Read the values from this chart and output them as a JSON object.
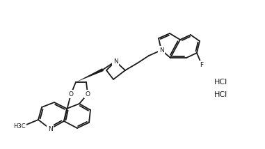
{
  "background_color": "#ffffff",
  "line_color": "#1a1a1a",
  "line_width": 1.3,
  "text_color": "#1a1a1a",
  "HCl_1": "HCl",
  "HCl_2": "HCl",
  "F_label": "F",
  "N_indole": "N",
  "N_azetidine": "N",
  "N_quinoline": "N",
  "H3C_label": "H3C",
  "O1_label": "O",
  "O2_label": "O"
}
